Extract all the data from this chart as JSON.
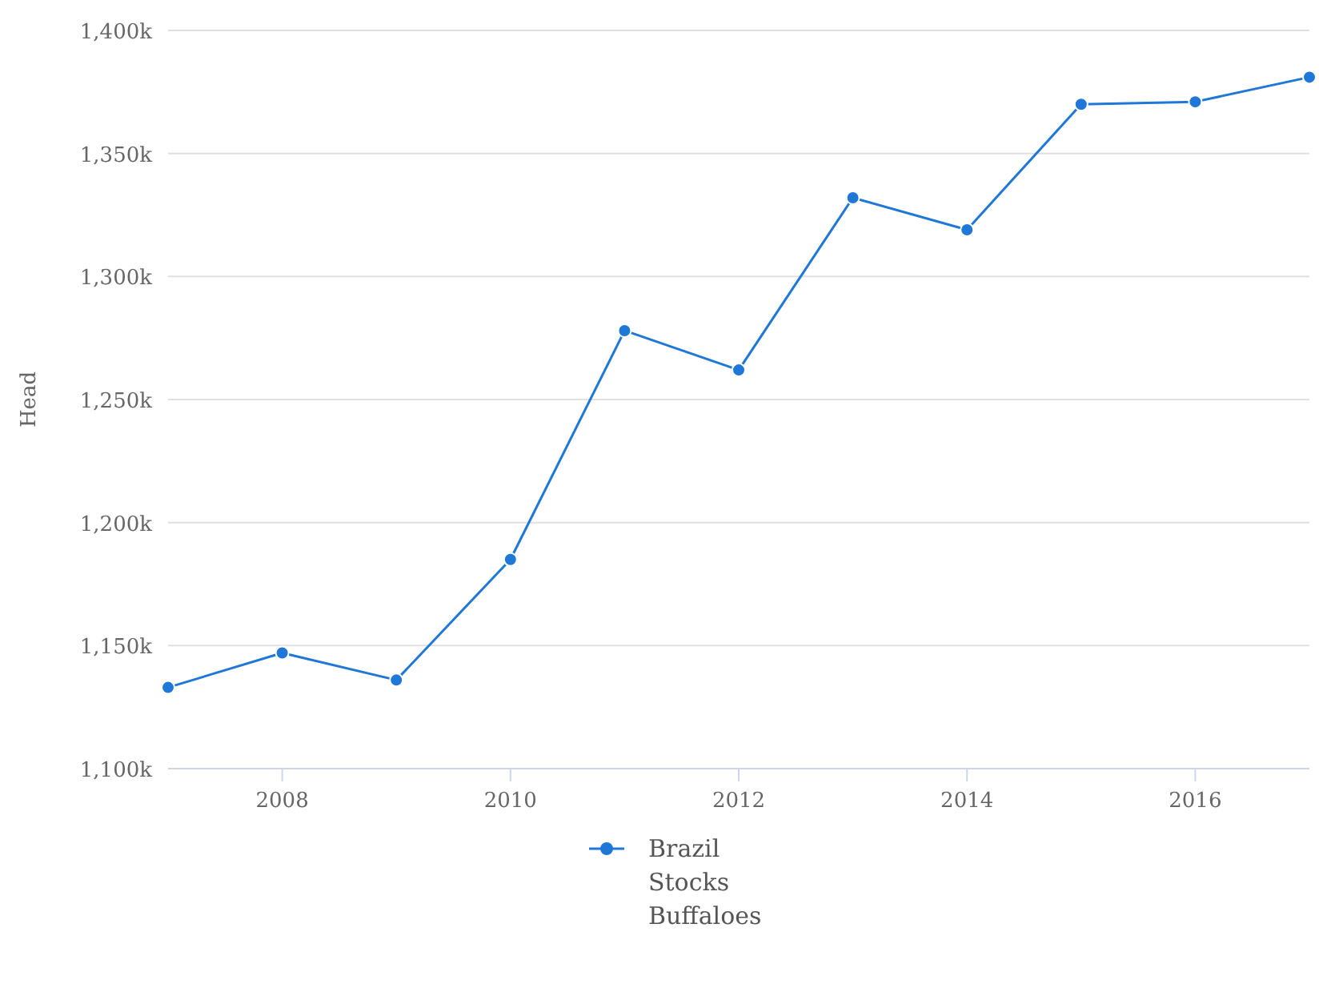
{
  "chart_data": {
    "type": "line",
    "ylabel": "Head",
    "x": [
      2007,
      2008,
      2009,
      2010,
      2011,
      2012,
      2013,
      2014,
      2015,
      2016,
      2017
    ],
    "series": [
      {
        "name": "Brazil Stocks Buffaloes",
        "color": "#1f78d8",
        "values": [
          1133000,
          1147000,
          1136000,
          1185000,
          1278000,
          1262000,
          1332000,
          1319000,
          1370000,
          1371000,
          1381000
        ]
      }
    ],
    "xlim": [
      2007,
      2017
    ],
    "xticks": [
      2008,
      2010,
      2012,
      2014,
      2016
    ],
    "ylim": [
      1100000,
      1400000
    ],
    "yticks": [
      {
        "value": 1100000,
        "label": "1,100k"
      },
      {
        "value": 1150000,
        "label": "1,150k"
      },
      {
        "value": 1200000,
        "label": "1,200k"
      },
      {
        "value": 1250000,
        "label": "1,250k"
      },
      {
        "value": 1300000,
        "label": "1,300k"
      },
      {
        "value": 1350000,
        "label": "1,350k"
      },
      {
        "value": 1400000,
        "label": "1,400k"
      }
    ],
    "grid": "y",
    "legend": "bottom",
    "marker": "circle",
    "line_style": "solid"
  }
}
